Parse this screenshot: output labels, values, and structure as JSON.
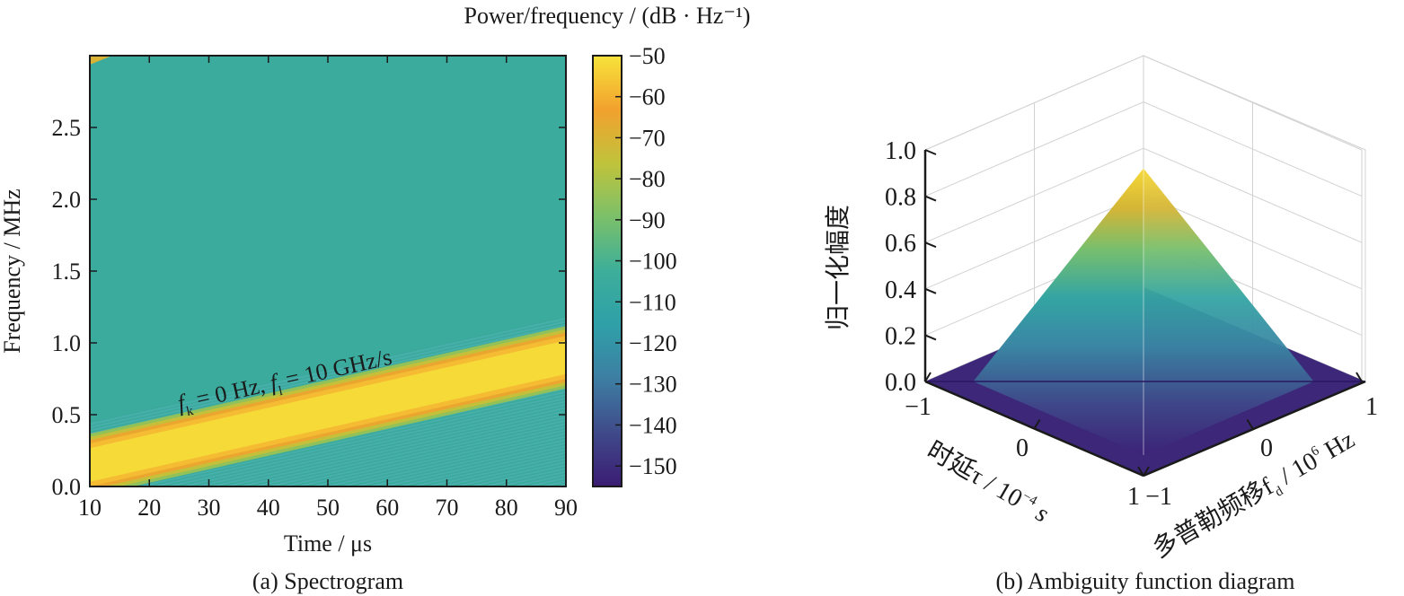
{
  "chart_data": [
    {
      "type": "heatmap",
      "panel": "a",
      "caption": "(a) Spectrogram",
      "xlabel": "Time / μs",
      "ylabel": "Frequency / MHz",
      "xlim": [
        10,
        90
      ],
      "ylim": [
        0,
        3.0
      ],
      "xticks": [
        10,
        20,
        30,
        40,
        50,
        60,
        70,
        80,
        90
      ],
      "yticks": [
        0.0,
        0.5,
        1.0,
        1.5,
        2.0,
        2.5
      ],
      "ytick_labels": [
        "0.0",
        "0.5",
        "1.0",
        "1.5",
        "2.0",
        "2.5"
      ],
      "colorbar": {
        "label": "Power/frequency / (dB · Hz⁻¹)",
        "range": [
          -155,
          -50
        ],
        "ticks": [
          -50,
          -60,
          -70,
          -80,
          -90,
          -100,
          -110,
          -120,
          -130,
          -140,
          -150
        ],
        "tick_labels": [
          "−50",
          "−60",
          "−70",
          "−80",
          "−90",
          "−100",
          "−110",
          "−120",
          "−130",
          "−140",
          "−150"
        ],
        "colors": [
          "#3b1c73",
          "#3f4a8a",
          "#3d7ea3",
          "#2fa0a8",
          "#3cae9a",
          "#7bc06a",
          "#c0c33b",
          "#f2a12e",
          "#f7e43a"
        ]
      },
      "background_level_db": -105,
      "chirp": {
        "start": {
          "time": 10,
          "freq": 0.15
        },
        "end": {
          "time": 90,
          "freq": 0.9
        },
        "peak_level_db": -52,
        "bandwidth_mhz": 0.3
      },
      "corner_level_db": -70,
      "annotation": {
        "prefix": "f",
        "sub1": "k",
        "middle": " = 0 Hz, ",
        "prefix2": "f",
        "sub2": "l",
        "suffix": " = 10 GHz/s"
      }
    },
    {
      "type": "surface",
      "panel": "b",
      "caption": "(b) Ambiguity function diagram",
      "zlabel": "归一化幅度",
      "xlabel": {
        "main": "时延τ / 10",
        "sup": "−4",
        "tail": " s"
      },
      "ylabel": {
        "main": "多普勒频移f",
        "sub": "d",
        "tail": " / 10",
        "sup": "6",
        "tail2": " Hz"
      },
      "xlim": [
        -1,
        1
      ],
      "ylim": [
        -1,
        1
      ],
      "zlim": [
        0,
        1.0
      ],
      "xticks": [
        -1,
        0,
        1
      ],
      "xtick_labels": [
        "−1",
        "0",
        "1"
      ],
      "yticks": [
        -1,
        0,
        1
      ],
      "ytick_labels": [
        "−1",
        "0",
        "1"
      ],
      "zticks": [
        0.0,
        0.2,
        0.4,
        0.6,
        0.8,
        1.0
      ],
      "ztick_labels": [
        "0.0",
        "0.2",
        "0.4",
        "0.6",
        "0.8",
        "1.0"
      ],
      "peak": {
        "x": 0,
        "y": 0,
        "z": 0.92
      },
      "shape": "triangular ridge peak decaying to 0 at edges"
    }
  ]
}
